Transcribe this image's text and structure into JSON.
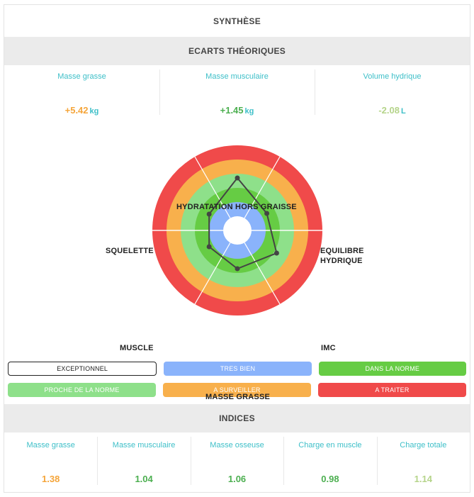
{
  "title": "SYNTHÈSE",
  "ecarts": {
    "header": "ECARTS THÉORIQUES",
    "items": [
      {
        "label": "Masse grasse",
        "value": "+5.42",
        "unit": "kg",
        "color": "#f5a53a"
      },
      {
        "label": "Masse musculaire",
        "value": "+1.45",
        "unit": "kg",
        "color": "#4caf50"
      },
      {
        "label": "Volume hydrique",
        "value": "-2.08",
        "unit": "L",
        "color": "#b5d48a"
      }
    ]
  },
  "radar": {
    "axes": [
      "HYDRATATION HORS GRAISSE",
      "EQUILIBRE HYDRIQUE",
      "IMC",
      "MASSE GRASSE",
      "MUSCLE",
      "SQUELETTE"
    ],
    "axis_label_lines": {
      "equilibre": [
        "EQUILIBRE",
        "HYDRIQUE"
      ]
    },
    "levels": [
      {
        "name": "TRES BIEN",
        "color": "#8ab3fb"
      },
      {
        "name": "DANS LA NORME",
        "color": "#66cc44"
      },
      {
        "name": "PROCHE DE LA NORME",
        "color": "#8ee08a"
      },
      {
        "name": "A SURVEILLER",
        "color": "#f8b04c"
      },
      {
        "name": "A TRAITER",
        "color": "#f04a4a"
      }
    ],
    "center_color": "#ffffff",
    "values": [
      3.7,
      2.4,
      3.2,
      2.7,
      2.3,
      2.3
    ],
    "line_color": "#444444"
  },
  "legend": {
    "rows": [
      [
        {
          "label": "EXCEPTIONNEL",
          "color": "#ffffff",
          "outline": true
        },
        {
          "label": "TRES BIEN",
          "color": "#8ab3fb"
        },
        {
          "label": "DANS LA NORME",
          "color": "#66cc44"
        }
      ],
      [
        {
          "label": "PROCHE DE LA NORME",
          "color": "#8ee08a"
        },
        {
          "label": "A SURVEILLER",
          "color": "#f8b04c"
        },
        {
          "label": "A TRAITER",
          "color": "#f04a4a"
        }
      ]
    ]
  },
  "indices": {
    "header": "INDICES",
    "items": [
      {
        "label": "Masse grasse",
        "value": "1.38",
        "color": "#f5a53a"
      },
      {
        "label": "Masse musculaire",
        "value": "1.04",
        "color": "#4caf50"
      },
      {
        "label": "Masse osseuse",
        "value": "1.06",
        "color": "#4caf50"
      },
      {
        "label": "Charge en muscle",
        "value": "0.98",
        "color": "#4caf50"
      },
      {
        "label": "Charge totale",
        "value": "1.14",
        "color": "#b5d48a"
      }
    ]
  }
}
